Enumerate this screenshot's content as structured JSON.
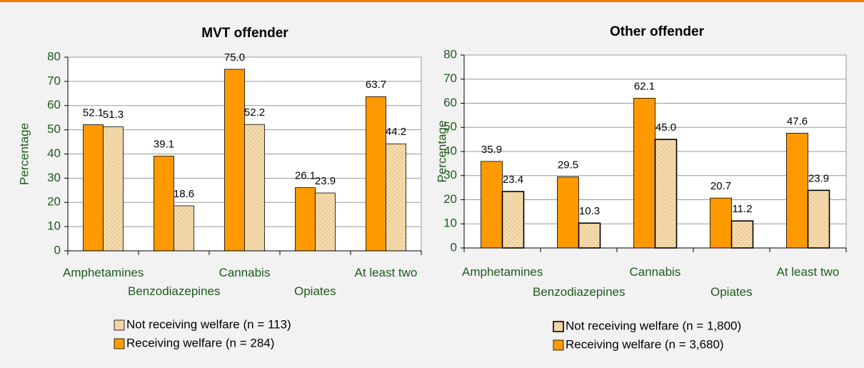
{
  "chart_data": [
    {
      "type": "bar",
      "title": "MVT offender",
      "y_label": "Percentage",
      "categories": [
        "Amphetamines",
        "Benzodiazepines",
        "Cannabis",
        "Opiates",
        "At least two"
      ],
      "series": [
        {
          "name": "Receiving welfare (n = 284)",
          "color": "#ff9900",
          "values": [
            52.1,
            39.1,
            75,
            26.1,
            63.7
          ],
          "value_labels": [
            "52.1",
            "39.1",
            "75.0",
            "26.1",
            "63.7"
          ]
        },
        {
          "name": "Not receiving welfare (n = 113)",
          "color": "#f5dcae",
          "values": [
            51.3,
            18.6,
            52.2,
            23.9,
            44.2
          ],
          "value_labels": [
            "51.3",
            "18.6",
            "52.2",
            "23.9",
            "44.2"
          ]
        }
      ],
      "ylim": [
        0,
        80
      ],
      "yticks": [
        0,
        10,
        20,
        30,
        40,
        50,
        60,
        70,
        80
      ],
      "grid": true
    },
    {
      "type": "bar",
      "title": "Other offender",
      "y_label": "Percentage",
      "categories": [
        "Amphetamines",
        "Benzodiazepines",
        "Cannabis",
        "Opiates",
        "At least two"
      ],
      "series": [
        {
          "name": "Receiving welfare (n = 3,680)",
          "color": "#ff9900",
          "values": [
            35.9,
            29.5,
            62.1,
            20.7,
            47.6
          ],
          "value_labels": [
            "35.9",
            "29.5",
            "62.1",
            "20.7",
            "47.6"
          ]
        },
        {
          "name": "Not receiving welfare (n = 1,800)",
          "color": "#f5dcae",
          "values": [
            23.4,
            10.3,
            45,
            11.2,
            23.9
          ],
          "value_labels": [
            "23.4",
            "10.3",
            "45.0",
            "11.2",
            "23.9"
          ]
        }
      ],
      "ylim": [
        0,
        80
      ],
      "yticks": [
        0,
        10,
        20,
        30,
        40,
        50,
        60,
        70,
        80
      ],
      "grid": true
    }
  ]
}
